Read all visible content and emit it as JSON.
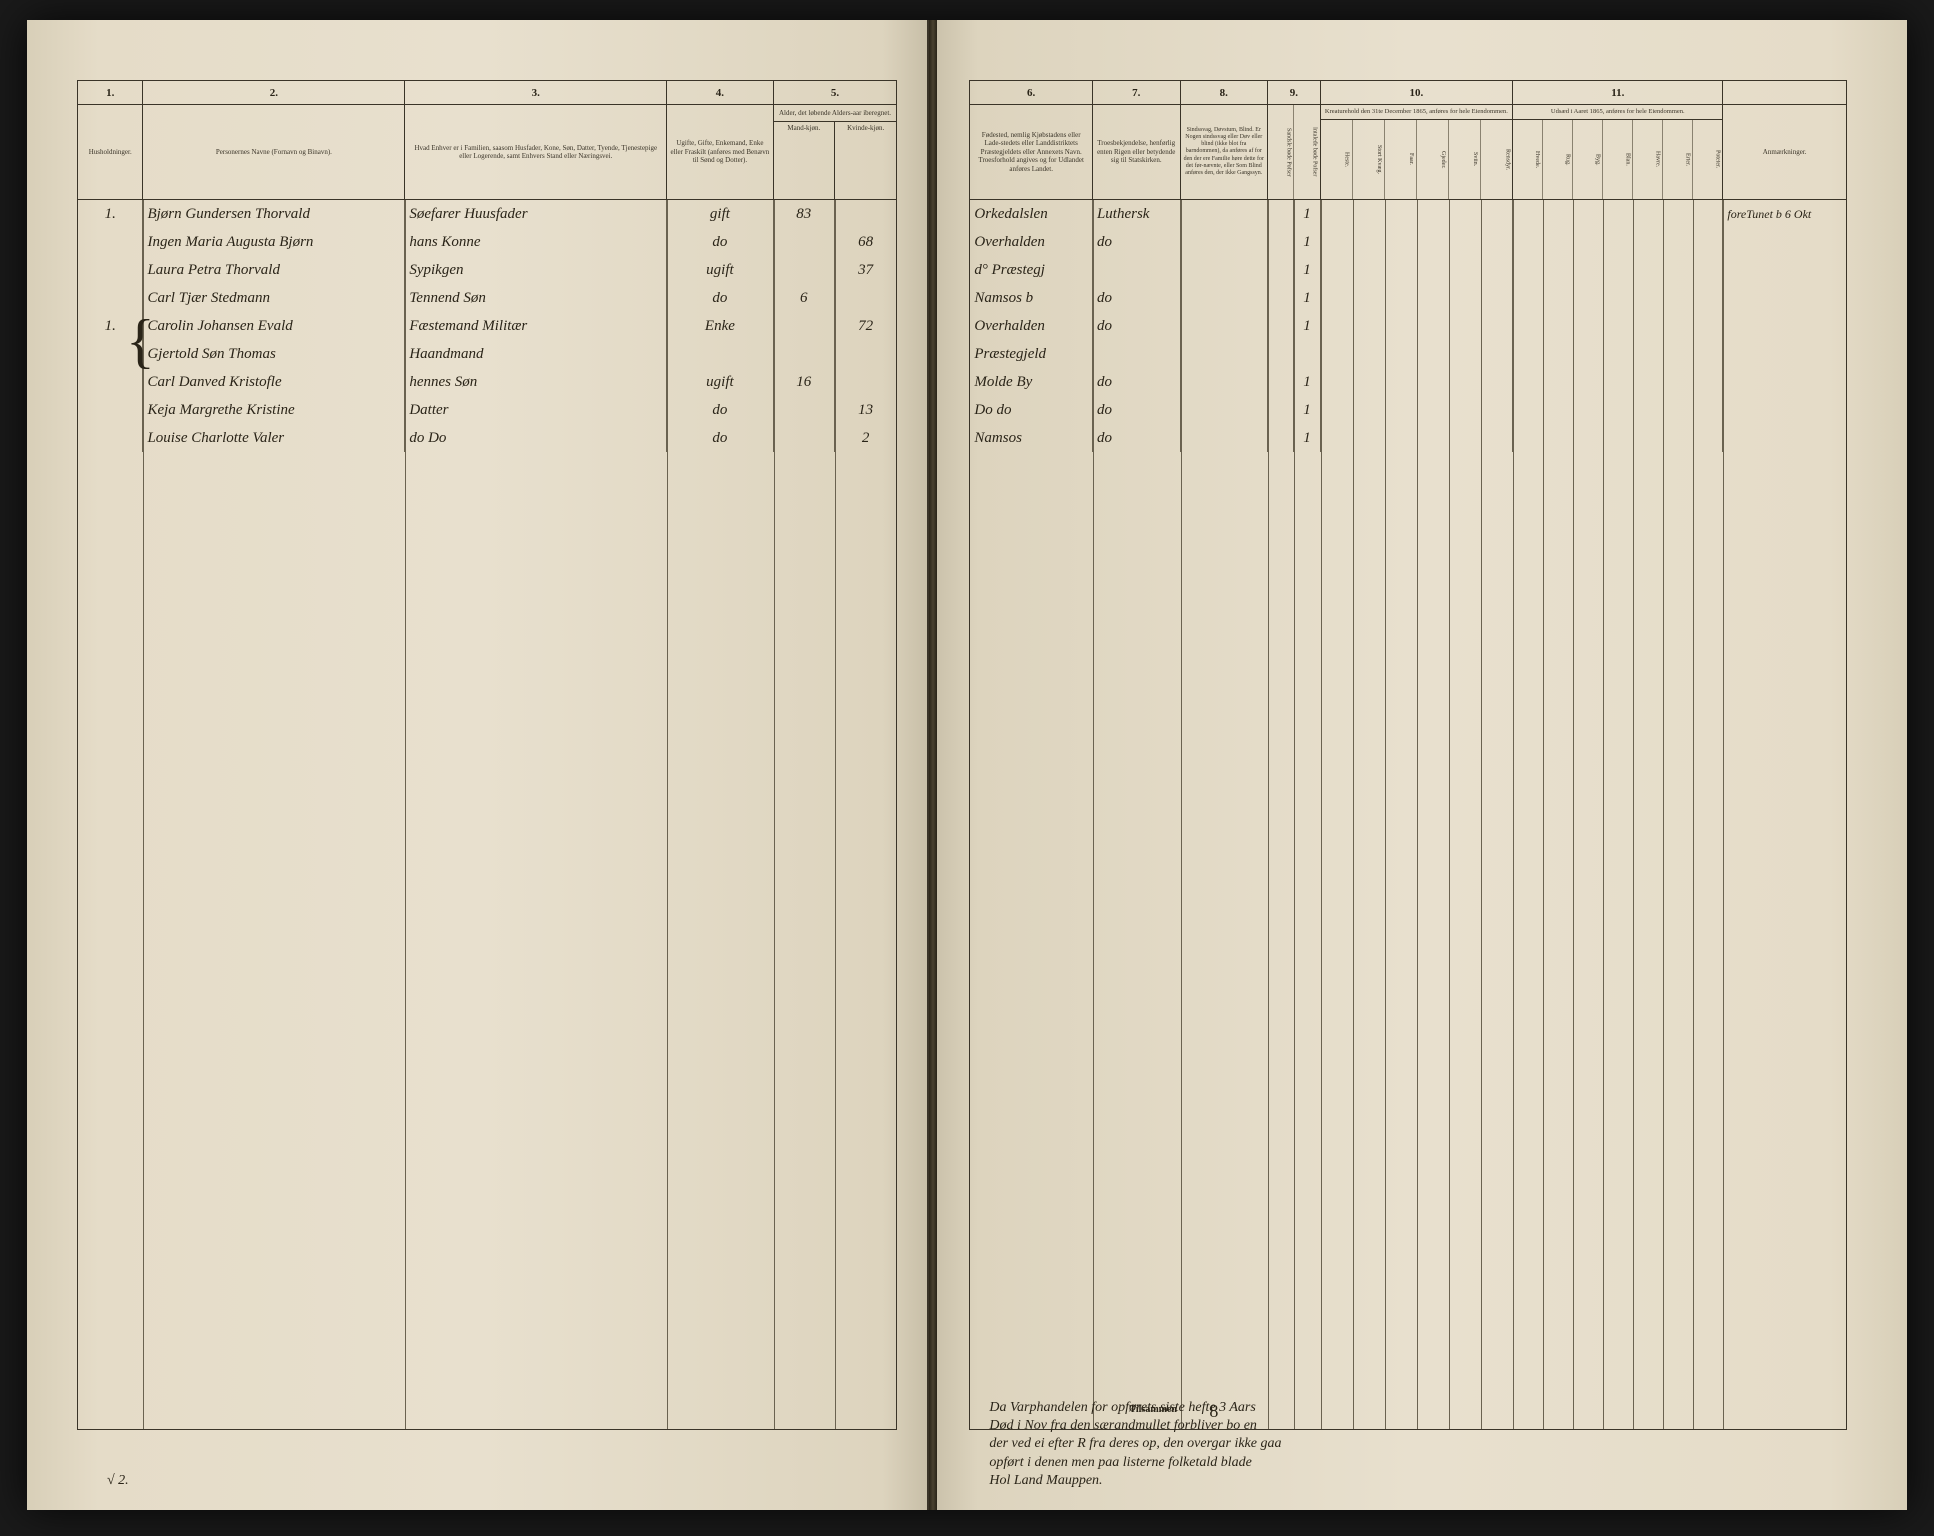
{
  "document": {
    "type": "census_ledger",
    "year": "1865",
    "paper_color": "#e8e0ce",
    "ink_color": "#2a2418",
    "rule_color": "#3a3428"
  },
  "left_page": {
    "columns": [
      {
        "num": "1.",
        "width_pct": 8,
        "label": "Husholdninger."
      },
      {
        "num": "2.",
        "width_pct": 32,
        "label": "Personernes Navne (Fornavn og Binavn)."
      },
      {
        "num": "3.",
        "width_pct": 32,
        "label": "Hvad Enhver er i Familien, saasom Husfader, Kone, Søn, Datter, Tyende, Tjenestepige eller Logerende, samt Enhvers Stand eller Næringsvei."
      },
      {
        "num": "4.",
        "width_pct": 13,
        "label": "Ugifte, Gifte, Enkemand, Enke eller Fraskilt (anføres med Benævn til Sønd og Dotter)."
      },
      {
        "num": "5.",
        "width_pct": 15,
        "label": "Alder, det løbende Alders-aar iberegnet.",
        "subcols": [
          "Mand-kjøn.",
          "Kvinde-kjøn."
        ]
      }
    ],
    "rows": [
      {
        "c1": "1.",
        "c2": "Bjørn Gundersen Thorvald",
        "c3": "Søefarer Huusfader",
        "c4": "gift",
        "c5a": "83",
        "c5b": ""
      },
      {
        "c1": "",
        "c2": "Ingen Maria Augusta Bjørn",
        "c3": "hans Konne",
        "c4": "do",
        "c5a": "",
        "c5b": "68"
      },
      {
        "c1": "",
        "c2": "Laura Petra Thorvald",
        "c3": "Sypikgen",
        "c4": "ugift",
        "c5a": "",
        "c5b": "37"
      },
      {
        "c1": "",
        "c2": "Carl Tjær Stedmann",
        "c3": "Tennend Søn",
        "c4": "do",
        "c5a": "6",
        "c5b": ""
      },
      {
        "c1": "1.",
        "c2": "Carolin Johansen Evald",
        "c3": "Fæstemand Militær",
        "c4": "Enke",
        "c5a": "",
        "c5b": "72"
      },
      {
        "c1": "",
        "c2": "Gjertold Søn Thomas",
        "c3": "Haandmand",
        "c4": "",
        "c5a": "",
        "c5b": ""
      },
      {
        "c1": "",
        "c2": "Carl Danved Kristofle",
        "c3": "hennes Søn",
        "c4": "ugift",
        "c5a": "16",
        "c5b": ""
      },
      {
        "c1": "",
        "c2": "Keja Margrethe Kristine",
        "c3": "Datter",
        "c4": "do",
        "c5a": "",
        "c5b": "13"
      },
      {
        "c1": "",
        "c2": "Louise Charlotte Valer",
        "c3": "do Do",
        "c4": "do",
        "c5a": "",
        "c5b": "2"
      }
    ],
    "footer": "√ 2."
  },
  "right_page": {
    "columns": [
      {
        "num": "6.",
        "width_pct": 14,
        "label": "Fødested, nemlig Kjøbstadens eller Lade-stedets eller Landdistriktets Præstegjeldets eller Annexets Navn. Troesforhold angives og for Udlandet anføres Landet."
      },
      {
        "num": "7.",
        "width_pct": 10,
        "label": "Troesbekjendelse, henførlig enten Rigen eller betydende sig til Statskirken."
      },
      {
        "num": "8.",
        "width_pct": 10,
        "label": "Sindssvag, Døvstum, Blind. Er Nogen sindssvag eller Døv eller blind (ikke blot fra barndommen), da anføres af for den der ere Familie høre dette for det før-nævnte, eller Som Blind anføres den, der ikke Gangssyn."
      },
      {
        "num": "9.",
        "width_pct": 6,
        "label": "",
        "subcols": [
          "Sandsle bøde Pofser",
          "Intalede bøde Pofser"
        ]
      },
      {
        "num": "10.",
        "width_pct": 27,
        "label": "Kreaturehold den 31te December 1865, anføres for hele Eiendommen.",
        "subcols": [
          "Heste.",
          "Stort Kvæg.",
          "Faar.",
          "Gjeder.",
          "Sviin.",
          "Rensdyr."
        ]
      },
      {
        "num": "11.",
        "width_pct": 33,
        "label": "Udsæd i Aaret 1865, anføres for hele Eiendommen.",
        "subcols": [
          "Hvede.",
          "Rug.",
          "Byg.",
          "Blan.",
          "Havre.",
          "Erter.",
          "Poteter."
        ]
      }
    ],
    "anmerkninger_label": "Anmærkninger.",
    "rows": [
      {
        "c6": "Orkedalslen",
        "c7": "Luthersk",
        "c8": "",
        "c9a": "",
        "c9b": "1",
        "remark": "foreTunet b 6 Okt"
      },
      {
        "c6": "Overhalden",
        "c7": "do",
        "c8": "",
        "c9a": "",
        "c9b": "1",
        "remark": ""
      },
      {
        "c6": "d° Præstegj",
        "c7": "",
        "c8": "",
        "c9a": "",
        "c9b": "1",
        "remark": ""
      },
      {
        "c6": "Namsos b",
        "c7": "do",
        "c8": "",
        "c9a": "",
        "c9b": "1",
        "remark": ""
      },
      {
        "c6": "Overhalden",
        "c7": "do",
        "c8": "",
        "c9a": "",
        "c9b": "1",
        "remark": ""
      },
      {
        "c6": "Præstegjeld",
        "c7": "",
        "c8": "",
        "c9a": "",
        "c9b": "",
        "remark": ""
      },
      {
        "c6": "Molde By",
        "c7": "do",
        "c8": "",
        "c9a": "",
        "c9b": "1",
        "remark": ""
      },
      {
        "c6": "Do do",
        "c7": "do",
        "c8": "",
        "c9a": "",
        "c9b": "1",
        "remark": ""
      },
      {
        "c6": "Namsos",
        "c7": "do",
        "c8": "",
        "c9a": "",
        "c9b": "1",
        "remark": ""
      }
    ],
    "tilsammen_label": "Tilsammen",
    "tilsammen_value": "8",
    "footer_lines": [
      "Da Varphandelen for opførets siste hefte 3 Aars",
      "Død i Nov fra den særandmullet forbliver bo en",
      "der ved ei efter R fra deres op, den overgar ikke gaa",
      "opført i denen men paa listerne folketald blade",
      "                            Hol Land Mauppen."
    ]
  }
}
